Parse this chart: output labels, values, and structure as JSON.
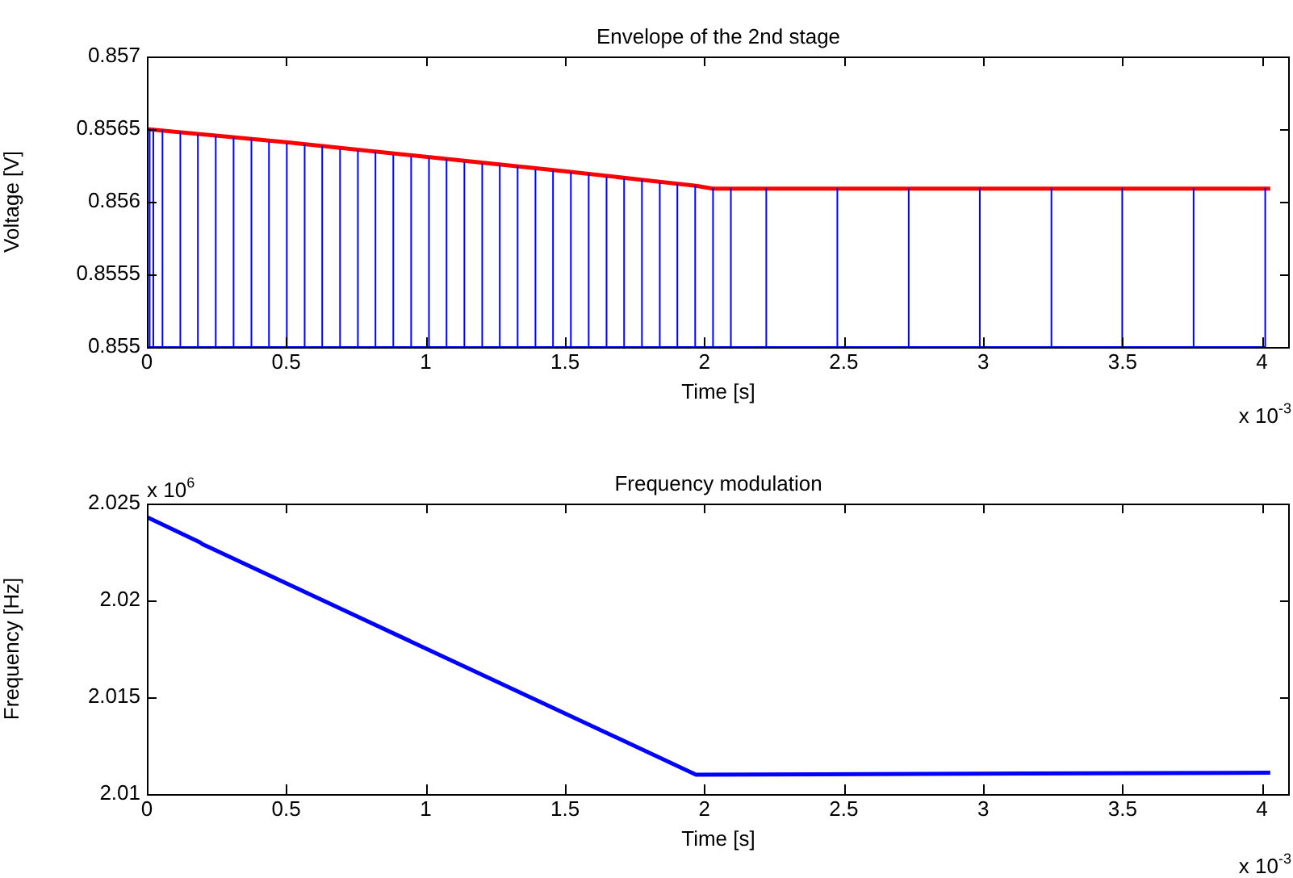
{
  "chart_data": [
    {
      "type": "line",
      "title": "Envelope of the 2nd stage",
      "xlabel": "Time [s]",
      "ylabel": "Voltage [V]",
      "annotations": [
        "x 10$^{-3}$"
      ],
      "marker": "none",
      "grid": false,
      "xlim": [
        0,
        4.1
      ],
      "xticks": [
        0,
        0.5,
        1,
        1.5,
        2,
        2.5,
        3,
        3.5,
        4
      ],
      "ylim": [
        0.855,
        0.857
      ],
      "yticks": [
        0.855,
        0.8555,
        0.856,
        0.8565,
        0.857
      ],
      "series": [
        {
          "color": "#0000ff",
          "x": [
            0,
            0,
            0,
            0.01,
            0.01,
            0.01,
            0.023,
            0.023,
            0.023,
            0.056,
            0.056,
            0.056,
            0.12,
            0.12,
            0.12,
            0.183,
            0.183,
            0.183,
            0.247,
            0.247,
            0.247,
            0.311,
            0.311,
            0.311,
            0.375,
            0.375,
            0.375,
            0.438,
            0.438,
            0.438,
            0.502,
            0.502,
            0.502,
            0.566,
            0.566,
            0.566,
            0.629,
            0.629,
            0.629,
            0.693,
            0.693,
            0.693,
            0.757,
            0.757,
            0.757,
            0.82,
            0.82,
            0.82,
            0.884,
            0.884,
            0.884,
            0.948,
            0.948,
            0.948,
            1.012,
            1.012,
            1.012,
            1.075,
            1.075,
            1.075,
            1.139,
            1.139,
            1.139,
            1.203,
            1.203,
            1.203,
            1.266,
            1.266,
            1.266,
            1.33,
            1.33,
            1.33,
            1.394,
            1.394,
            1.394,
            1.457,
            1.457,
            1.457,
            1.521,
            1.521,
            1.521,
            1.585,
            1.585,
            1.585,
            1.649,
            1.649,
            1.649,
            1.712,
            1.712,
            1.712,
            1.776,
            1.776,
            1.776,
            1.84,
            1.84,
            1.84,
            1.903,
            1.903,
            1.903,
            1.967,
            1.967,
            1.967,
            2.031,
            2.031,
            2.031,
            2.095,
            2.095,
            2.095,
            2.222,
            2.222,
            2.222,
            2.477,
            2.477,
            2.477,
            2.733,
            2.733,
            2.733,
            2.988,
            2.988,
            2.988,
            3.245,
            3.245,
            3.245,
            3.499,
            3.499,
            3.499,
            3.755,
            3.755,
            3.755,
            4.012,
            4.012,
            4.012
          ],
          "values": [
            0.855,
            0.8565,
            0.855,
            0.855,
            0.8565,
            0.855,
            0.855,
            0.8565,
            0.855,
            0.855,
            0.85649,
            0.855,
            0.855,
            0.85648,
            0.855,
            0.855,
            0.85646,
            0.855,
            0.855,
            0.85645,
            0.855,
            0.855,
            0.85644,
            0.855,
            0.855,
            0.85643,
            0.855,
            0.855,
            0.85641,
            0.855,
            0.855,
            0.8564,
            0.855,
            0.855,
            0.85639,
            0.855,
            0.855,
            0.85638,
            0.855,
            0.855,
            0.85636,
            0.855,
            0.855,
            0.85635,
            0.855,
            0.855,
            0.85634,
            0.855,
            0.855,
            0.85632,
            0.855,
            0.855,
            0.85631,
            0.855,
            0.855,
            0.8563,
            0.855,
            0.855,
            0.85629,
            0.855,
            0.855,
            0.85627,
            0.855,
            0.855,
            0.85626,
            0.855,
            0.855,
            0.85625,
            0.855,
            0.855,
            0.85624,
            0.855,
            0.855,
            0.85622,
            0.855,
            0.855,
            0.85621,
            0.855,
            0.855,
            0.8562,
            0.855,
            0.855,
            0.85619,
            0.855,
            0.855,
            0.85617,
            0.855,
            0.855,
            0.85616,
            0.855,
            0.855,
            0.85615,
            0.855,
            0.855,
            0.85613,
            0.855,
            0.855,
            0.85612,
            0.855,
            0.855,
            0.85611,
            0.855,
            0.855,
            0.85609,
            0.855,
            0.855,
            0.85609,
            0.855,
            0.855,
            0.85609,
            0.855,
            0.855,
            0.85609,
            0.855,
            0.855,
            0.85609,
            0.855,
            0.855,
            0.85609,
            0.855,
            0.855,
            0.85609,
            0.855,
            0.855,
            0.85609,
            0.855,
            0.855,
            0.85609,
            0.855,
            0.855,
            0.85609,
            0.855
          ]
        },
        {
          "color": "#ff0000",
          "x": [
            0,
            0.5,
            1,
            1.5,
            1.78,
            1.97,
            2.03,
            4.03
          ],
          "values": [
            0.8565,
            0.85641,
            0.85631,
            0.85621,
            0.85615,
            0.85611,
            0.85609,
            0.85609
          ]
        }
      ]
    },
    {
      "type": "line",
      "title": "Frequency modulation",
      "xlabel": "Time [s]",
      "ylabel": "Frequency [Hz]",
      "annotations": [
        "x 10$^{-3}$",
        "x 10$^{6}$"
      ],
      "marker": "none",
      "grid": false,
      "xlim": [
        0,
        4.1
      ],
      "xticks": [
        0,
        0.5,
        1,
        1.5,
        2,
        2.5,
        3,
        3.5,
        4
      ],
      "ylim": [
        2.01,
        2.025
      ],
      "yticks": [
        2.01,
        2.015,
        2.02,
        2.025
      ],
      "series": [
        {
          "color": "#0000ff",
          "x": [
            0,
            0.19,
            0.2,
            1.97,
            4.03
          ],
          "values": [
            2.0243,
            2.023,
            2.0229,
            2.011,
            2.0111
          ]
        }
      ]
    }
  ]
}
